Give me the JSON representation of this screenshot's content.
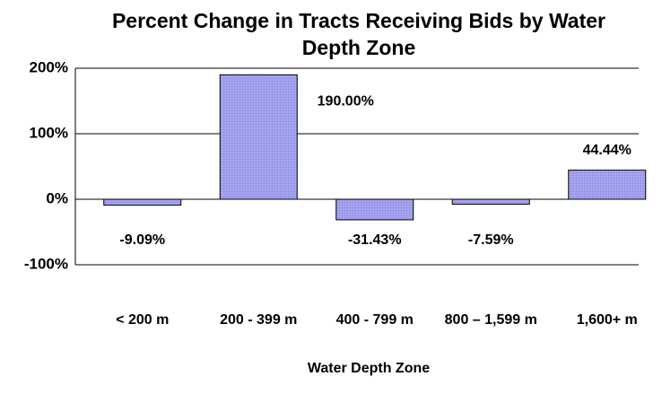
{
  "chart_data": {
    "type": "bar",
    "title": "Percent Change in Tracts Receiving Bids by Water Depth Zone",
    "xlabel": "Water Depth Zone",
    "categories": [
      "< 200 m",
      "200 - 399 m",
      "400 - 799 m",
      "800 – 1,599 m",
      "1,600+ m"
    ],
    "values": [
      -9.09,
      190.0,
      -31.43,
      -7.59,
      44.44
    ],
    "value_labels": [
      "-9.09%",
      "190.00%",
      "-31.43%",
      "-7.59%",
      "44.44%"
    ],
    "color": "#a3a3f0",
    "ylim": [
      -100,
      200
    ],
    "yticks": [
      {
        "value": -100,
        "label": "-100%"
      },
      {
        "value": 0,
        "label": "0%"
      },
      {
        "value": 100,
        "label": "100%"
      },
      {
        "value": 200,
        "label": "200%"
      }
    ],
    "grid": true
  }
}
